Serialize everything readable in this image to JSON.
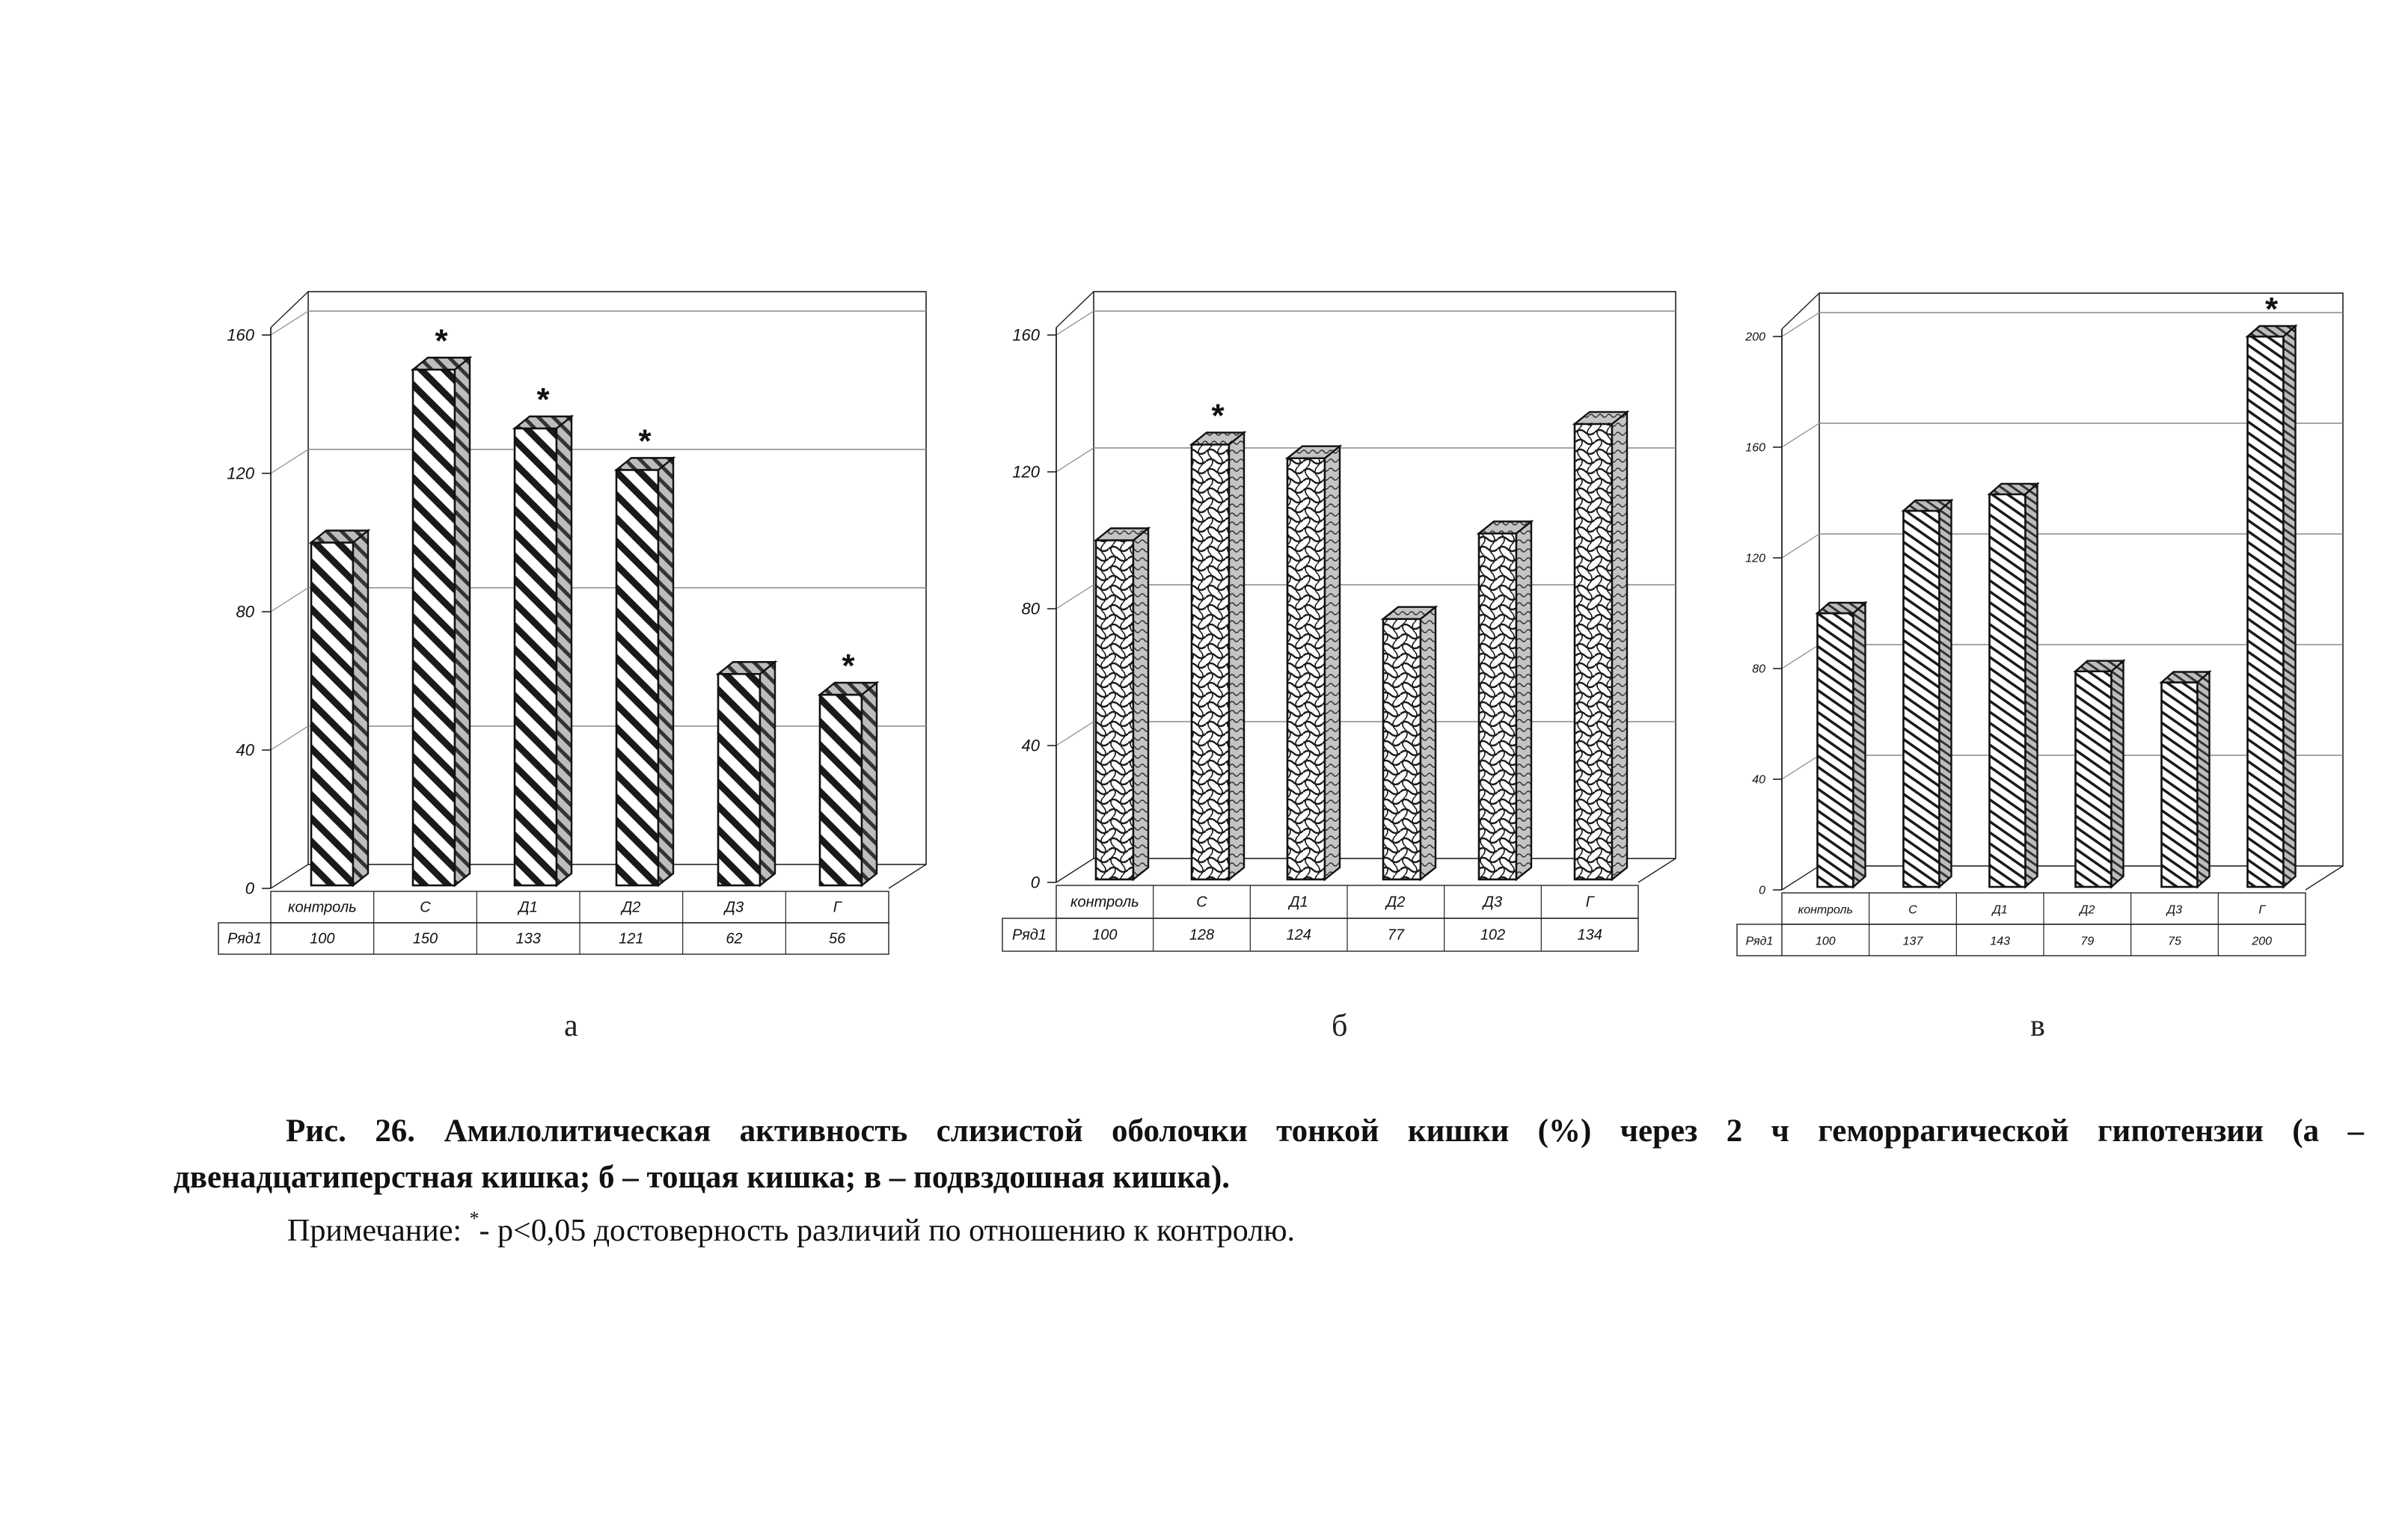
{
  "chart_data": [
    {
      "type": "bar",
      "panel": "а",
      "categories": [
        "контроль",
        "С",
        "Д1",
        "Д2",
        "Д3",
        "Г"
      ],
      "series": [
        {
          "name": "Ряд1",
          "values": [
            100,
            150,
            133,
            121,
            62,
            56
          ]
        }
      ],
      "table_values": [
        "100",
        "150",
        "133",
        "121",
        "62",
        "56"
      ],
      "significant": [
        false,
        true,
        true,
        true,
        false,
        true
      ],
      "ylim": [
        0,
        160
      ],
      "yticks": [
        0,
        40,
        80,
        120,
        160
      ],
      "ytick_labels": [
        "0",
        "40",
        "80",
        "120",
        "160"
      ],
      "pattern": "diagonal-hatch",
      "grid": true
    },
    {
      "type": "bar",
      "panel": "б",
      "categories": [
        "контроль",
        "С",
        "Д1",
        "Д2",
        "Д3",
        "Г"
      ],
      "series": [
        {
          "name": "Ряд1",
          "values": [
            100,
            128,
            124,
            77,
            102,
            134
          ]
        }
      ],
      "table_values": [
        "100",
        "128",
        "124",
        "77",
        "102",
        "134"
      ],
      "significant": [
        false,
        true,
        false,
        false,
        false,
        false
      ],
      "ylim": [
        0,
        160
      ],
      "yticks": [
        0,
        40,
        80,
        120,
        160
      ],
      "ytick_labels": [
        "0",
        "40",
        "80",
        "120",
        "160"
      ],
      "pattern": "wave-crosshatch",
      "grid": true
    },
    {
      "type": "bar",
      "panel": "в",
      "categories": [
        "контроль",
        "С",
        "Д1",
        "Д2",
        "Д3",
        "Г"
      ],
      "series": [
        {
          "name": "Ряд1",
          "values": [
            100,
            137,
            143,
            79,
            75,
            200
          ]
        }
      ],
      "table_values": [
        "100",
        "137",
        "143",
        "79",
        "75",
        "200"
      ],
      "significant": [
        false,
        false,
        false,
        false,
        false,
        true
      ],
      "ylim": [
        0,
        200
      ],
      "yticks": [
        0,
        40,
        80,
        120,
        160,
        200
      ],
      "ytick_labels": [
        "0",
        "40",
        "80",
        "120",
        "160",
        "200"
      ],
      "pattern": "fine-diagonal-hatch",
      "grid": true
    }
  ],
  "panel_letters": [
    "а",
    "б",
    "в"
  ],
  "significance_marker": "*",
  "caption": {
    "line1": "Рис. 26. Амилолитическая активность слизистой оболочки тонкой кишки (%) через 2 ч геморрагической гипотензии (а –",
    "line2": "двенадцатиперстная кишка; б – тощая кишка; в – подвздошная кишка).",
    "note_prefix": "Примечание: ",
    "note_star": "*",
    "note_text": "- р<0,05 достоверность различий по отношению к контролю."
  },
  "colors": {
    "bar_stroke": "#111111",
    "bar_face": "#ffffff",
    "bar_side": "#9a9a9a",
    "bar_top": "#cfcfcf",
    "grid": "#888888",
    "axis": "#222222"
  }
}
